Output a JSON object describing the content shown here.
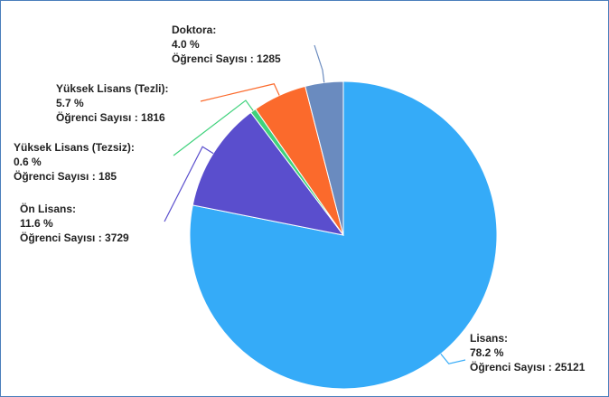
{
  "chart_data": {
    "type": "pie",
    "categories": [
      "Lisans:",
      "Ön Lisans:",
      "Yüksek Lisans (Tezsiz):",
      "Yüksek Lisans (Tezli):",
      "Doktora:"
    ],
    "values": [
      78.2,
      11.6,
      0.6,
      5.7,
      4.0
    ],
    "value_labels": [
      "78.2 %",
      "11.6 %",
      "0.6 %",
      "5.7 %",
      "4.0 %"
    ],
    "details": [
      "Öğrenci Sayısı : 25121",
      "Öğrenci Sayısı : 3729",
      "Öğrenci Sayısı : 185",
      "Öğrenci Sayısı : 1816",
      "Öğrenci Sayısı : 1285"
    ],
    "colors": [
      "#35abf8",
      "#5a4ecd",
      "#3fd27c",
      "#fb6a2c",
      "#6a8bbf"
    ]
  }
}
